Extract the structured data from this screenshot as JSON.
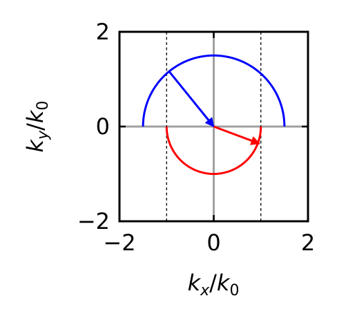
{
  "chart_data": {
    "type": "line",
    "xlim": [
      -2,
      2
    ],
    "ylim": [
      -2,
      2
    ],
    "xticks": [
      -2,
      0,
      2
    ],
    "yticks": [
      -2,
      0,
      2
    ],
    "xtick_labels": [
      "−2",
      "0",
      "2"
    ],
    "ytick_labels": [
      "−2",
      "0",
      "2"
    ],
    "xlabel": {
      "var": "k",
      "sub": "x",
      "sep": "/",
      "var2": "k",
      "sub2": "0"
    },
    "ylabel": {
      "var": "k",
      "sub": "y",
      "sep": "/",
      "var2": "k",
      "sub2": "0"
    },
    "zero_lines_color": "#a0a0a0",
    "series": [
      {
        "shape": "arc",
        "radius": 1.5,
        "from_deg": 0,
        "to_deg": 180,
        "color": "#0000ff"
      },
      {
        "shape": "arc",
        "radius": 1.0,
        "from_deg": 180,
        "to_deg": 360,
        "color": "#ff0000"
      }
    ],
    "vlines": [
      {
        "x": -1,
        "style": "dashed",
        "color": "#000000"
      },
      {
        "x": 1,
        "style": "dashed",
        "color": "#000000"
      }
    ],
    "arrows": [
      {
        "from": [
          -0.96,
          1.18
        ],
        "to": [
          0,
          0
        ],
        "color": "#0000ff"
      },
      {
        "from": [
          0,
          0
        ],
        "to": [
          0.97,
          -0.36
        ],
        "color": "#ff0000"
      }
    ]
  }
}
